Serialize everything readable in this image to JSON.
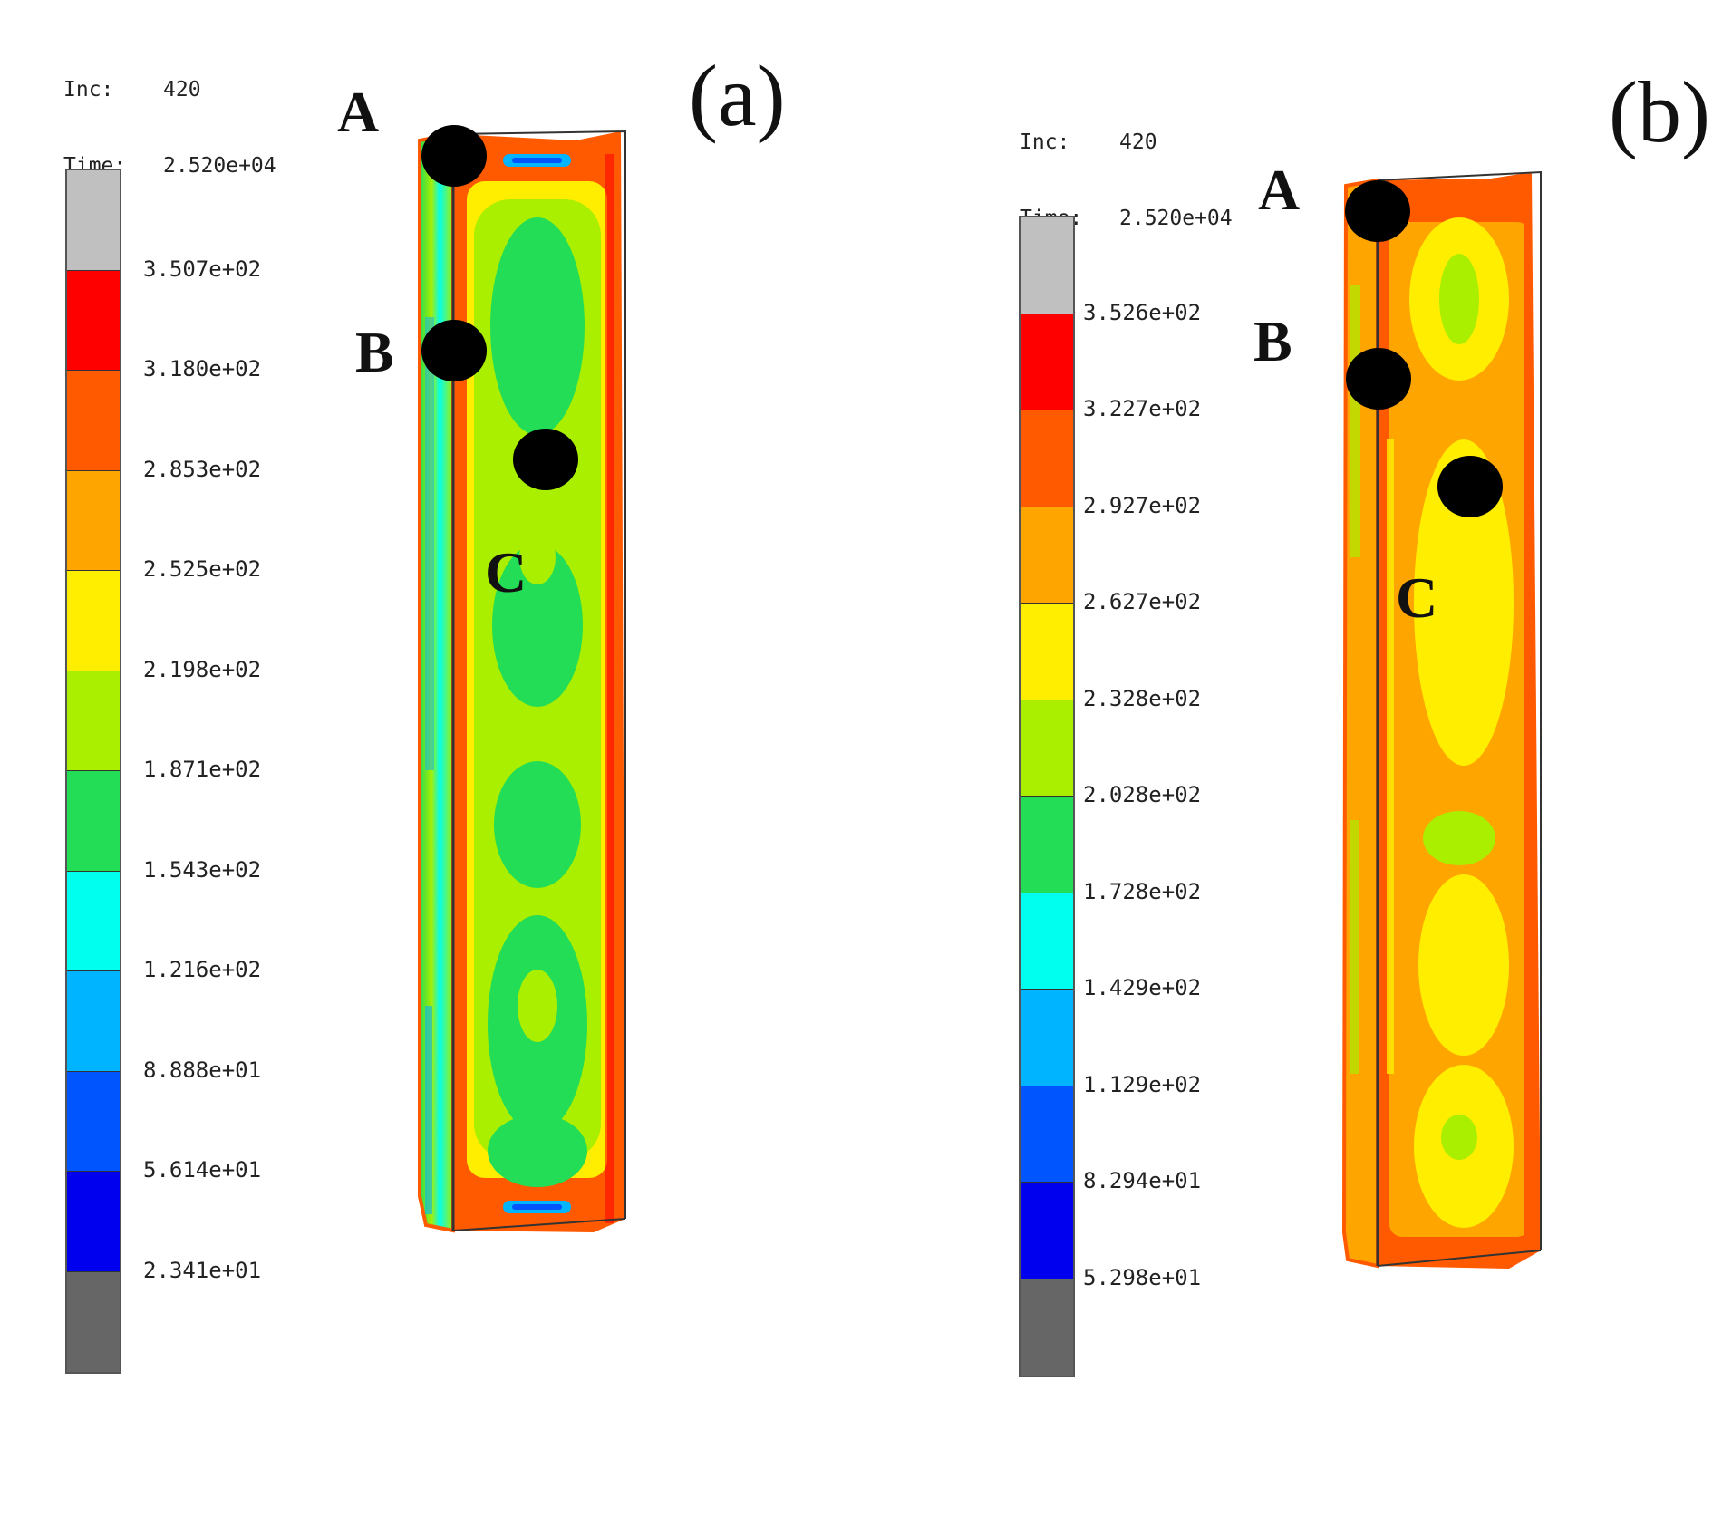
{
  "panels": [
    {
      "id": "a",
      "label": "(a)",
      "inc_key": "Inc:",
      "inc_value": "420",
      "time_key": "Time:",
      "time_value": "2.520e+04",
      "legend_values": [
        "3.507e+02",
        "3.180e+02",
        "2.853e+02",
        "2.525e+02",
        "2.198e+02",
        "1.871e+02",
        "1.543e+02",
        "1.216e+02",
        "8.888e+01",
        "5.614e+01",
        "2.341e+01"
      ],
      "points": [
        "A",
        "B",
        "C"
      ]
    },
    {
      "id": "b",
      "label": "(b)",
      "inc_key": "Inc:",
      "inc_value": "420",
      "time_key": "Time:",
      "time_value": "2.520e+04",
      "legend_values": [
        "3.526e+02",
        "3.227e+02",
        "2.927e+02",
        "2.627e+02",
        "2.328e+02",
        "2.028e+02",
        "1.728e+02",
        "1.429e+02",
        "1.129e+02",
        "8.294e+01",
        "5.298e+01"
      ],
      "points": [
        "A",
        "B",
        "C"
      ]
    }
  ],
  "legend_colors": [
    "#c0c0c0",
    "#ff0000",
    "#ff5a00",
    "#ffa500",
    "#ffee00",
    "#aaee00",
    "#22dd55",
    "#00ffee",
    "#00b4ff",
    "#0055ff",
    "#0000ee",
    "#666666"
  ]
}
